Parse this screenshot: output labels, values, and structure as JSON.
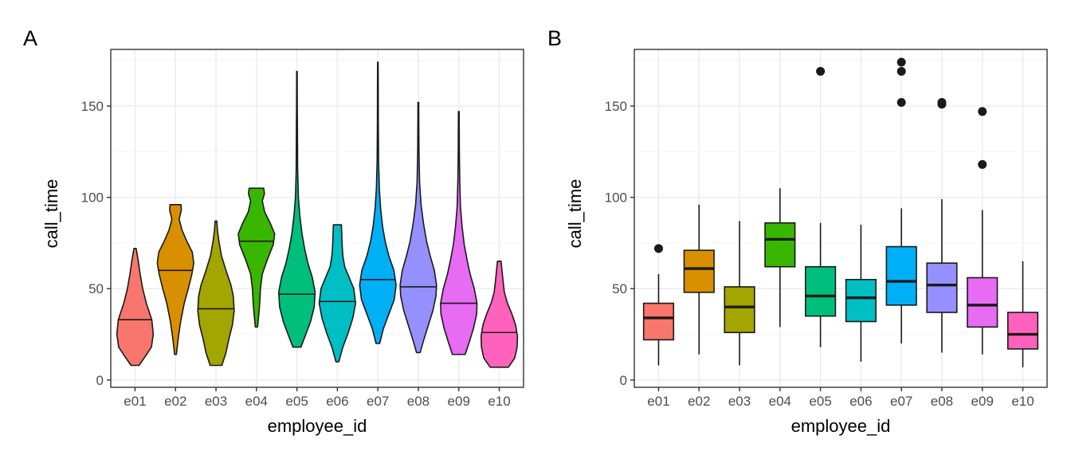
{
  "chart_data": [
    {
      "type": "violin",
      "panel_label": "A",
      "xlabel": "employee_id",
      "ylabel": "call_time",
      "ylim": [
        -4,
        181
      ],
      "yticks": [
        0,
        50,
        100,
        150
      ],
      "grid": true,
      "categories": [
        "e01",
        "e02",
        "e03",
        "e04",
        "e05",
        "e06",
        "e07",
        "e08",
        "e09",
        "e10"
      ],
      "colors": [
        "#F8766D",
        "#D89000",
        "#A3A500",
        "#39B600",
        "#00BF7D",
        "#00BFC4",
        "#00B0F6",
        "#9590FF",
        "#E76BF3",
        "#FF62BC"
      ],
      "violins": [
        {
          "min": 8,
          "max": 72,
          "median": 33,
          "profile": [
            [
              8,
              0.22
            ],
            [
              12,
              0.5
            ],
            [
              18,
              0.9
            ],
            [
              25,
              1.0
            ],
            [
              33,
              0.92
            ],
            [
              42,
              0.62
            ],
            [
              50,
              0.42
            ],
            [
              58,
              0.28
            ],
            [
              65,
              0.18
            ],
            [
              72,
              0.06
            ]
          ]
        },
        {
          "min": 14,
          "max": 96,
          "median": 60,
          "profile": [
            [
              14,
              0.05
            ],
            [
              22,
              0.14
            ],
            [
              32,
              0.28
            ],
            [
              42,
              0.48
            ],
            [
              50,
              0.7
            ],
            [
              58,
              0.9
            ],
            [
              64,
              1.0
            ],
            [
              70,
              0.92
            ],
            [
              76,
              0.62
            ],
            [
              82,
              0.36
            ],
            [
              88,
              0.2
            ],
            [
              93,
              0.32
            ],
            [
              96,
              0.3
            ]
          ]
        },
        {
          "min": 8,
          "max": 87,
          "median": 39,
          "profile": [
            [
              8,
              0.32
            ],
            [
              15,
              0.55
            ],
            [
              23,
              0.72
            ],
            [
              30,
              0.9
            ],
            [
              38,
              1.0
            ],
            [
              46,
              0.95
            ],
            [
              52,
              0.82
            ],
            [
              60,
              0.55
            ],
            [
              68,
              0.3
            ],
            [
              76,
              0.16
            ],
            [
              82,
              0.08
            ],
            [
              87,
              0.05
            ]
          ]
        },
        {
          "min": 29,
          "max": 105,
          "median": 76,
          "profile": [
            [
              29,
              0.06
            ],
            [
              35,
              0.12
            ],
            [
              42,
              0.18
            ],
            [
              50,
              0.22
            ],
            [
              58,
              0.32
            ],
            [
              66,
              0.6
            ],
            [
              74,
              0.92
            ],
            [
              80,
              1.0
            ],
            [
              86,
              0.75
            ],
            [
              92,
              0.45
            ],
            [
              98,
              0.32
            ],
            [
              102,
              0.44
            ],
            [
              105,
              0.4
            ]
          ]
        },
        {
          "min": 18,
          "max": 169,
          "median": 47,
          "profile": [
            [
              18,
              0.22
            ],
            [
              24,
              0.45
            ],
            [
              32,
              0.75
            ],
            [
              40,
              0.95
            ],
            [
              48,
              1.0
            ],
            [
              56,
              0.85
            ],
            [
              64,
              0.6
            ],
            [
              72,
              0.42
            ],
            [
              80,
              0.28
            ],
            [
              90,
              0.16
            ],
            [
              100,
              0.08
            ],
            [
              115,
              0.04
            ],
            [
              135,
              0.03
            ],
            [
              150,
              0.02
            ],
            [
              169,
              0.015
            ]
          ]
        },
        {
          "min": 10,
          "max": 85,
          "median": 43,
          "profile": [
            [
              10,
              0.08
            ],
            [
              18,
              0.3
            ],
            [
              26,
              0.6
            ],
            [
              34,
              0.85
            ],
            [
              42,
              1.0
            ],
            [
              50,
              0.9
            ],
            [
              56,
              0.65
            ],
            [
              62,
              0.4
            ],
            [
              68,
              0.3
            ],
            [
              74,
              0.26
            ],
            [
              80,
              0.24
            ],
            [
              85,
              0.22
            ]
          ]
        },
        {
          "min": 20,
          "max": 174,
          "median": 55,
          "profile": [
            [
              20,
              0.1
            ],
            [
              28,
              0.3
            ],
            [
              36,
              0.6
            ],
            [
              44,
              0.9
            ],
            [
              52,
              1.0
            ],
            [
              60,
              0.88
            ],
            [
              68,
              0.6
            ],
            [
              76,
              0.4
            ],
            [
              84,
              0.26
            ],
            [
              94,
              0.15
            ],
            [
              105,
              0.08
            ],
            [
              120,
              0.04
            ],
            [
              140,
              0.025
            ],
            [
              160,
              0.02
            ],
            [
              174,
              0.015
            ]
          ]
        },
        {
          "min": 15,
          "max": 152,
          "median": 51,
          "profile": [
            [
              15,
              0.1
            ],
            [
              22,
              0.3
            ],
            [
              30,
              0.55
            ],
            [
              38,
              0.8
            ],
            [
              46,
              0.97
            ],
            [
              52,
              1.0
            ],
            [
              60,
              0.88
            ],
            [
              68,
              0.65
            ],
            [
              76,
              0.45
            ],
            [
              86,
              0.28
            ],
            [
              96,
              0.15
            ],
            [
              108,
              0.07
            ],
            [
              125,
              0.035
            ],
            [
              140,
              0.025
            ],
            [
              152,
              0.02
            ]
          ]
        },
        {
          "min": 14,
          "max": 147,
          "median": 42,
          "profile": [
            [
              14,
              0.35
            ],
            [
              20,
              0.55
            ],
            [
              28,
              0.8
            ],
            [
              36,
              0.98
            ],
            [
              42,
              1.0
            ],
            [
              50,
              0.85
            ],
            [
              58,
              0.62
            ],
            [
              66,
              0.45
            ],
            [
              74,
              0.3
            ],
            [
              84,
              0.18
            ],
            [
              95,
              0.09
            ],
            [
              110,
              0.05
            ],
            [
              125,
              0.03
            ],
            [
              147,
              0.02
            ]
          ]
        },
        {
          "min": 7,
          "max": 65,
          "median": 26,
          "profile": [
            [
              7,
              0.5
            ],
            [
              12,
              0.85
            ],
            [
              18,
              0.98
            ],
            [
              24,
              1.0
            ],
            [
              30,
              0.9
            ],
            [
              36,
              0.7
            ],
            [
              42,
              0.45
            ],
            [
              48,
              0.28
            ],
            [
              55,
              0.2
            ],
            [
              60,
              0.15
            ],
            [
              65,
              0.1
            ]
          ]
        }
      ]
    },
    {
      "type": "box",
      "panel_label": "B",
      "xlabel": "employee_id",
      "ylabel": "call_time",
      "ylim": [
        -4,
        181
      ],
      "yticks": [
        0,
        50,
        100,
        150
      ],
      "grid": true,
      "categories": [
        "e01",
        "e02",
        "e03",
        "e04",
        "e05",
        "e06",
        "e07",
        "e08",
        "e09",
        "e10"
      ],
      "colors": [
        "#F8766D",
        "#D89000",
        "#A3A500",
        "#39B600",
        "#00BF7D",
        "#00BFC4",
        "#00B0F6",
        "#9590FF",
        "#E76BF3",
        "#FF62BC"
      ],
      "boxes": [
        {
          "min": 8,
          "q1": 22,
          "median": 34,
          "q3": 42,
          "max": 58,
          "outliers": [
            72
          ]
        },
        {
          "min": 14,
          "q1": 48,
          "median": 61,
          "q3": 71,
          "max": 96,
          "outliers": []
        },
        {
          "min": 8,
          "q1": 26,
          "median": 40,
          "q3": 51,
          "max": 87,
          "outliers": []
        },
        {
          "min": 29,
          "q1": 62,
          "median": 77,
          "q3": 86,
          "max": 105,
          "outliers": []
        },
        {
          "min": 18,
          "q1": 35,
          "median": 46,
          "q3": 62,
          "max": 86,
          "outliers": [
            169
          ]
        },
        {
          "min": 10,
          "q1": 32,
          "median": 45,
          "q3": 55,
          "max": 85,
          "outliers": []
        },
        {
          "min": 20,
          "q1": 41,
          "median": 54,
          "q3": 73,
          "max": 94,
          "outliers": [
            174,
            169,
            152
          ]
        },
        {
          "min": 15,
          "q1": 37,
          "median": 52,
          "q3": 64,
          "max": 99,
          "outliers": [
            152,
            151
          ]
        },
        {
          "min": 14,
          "q1": 29,
          "median": 41,
          "q3": 56,
          "max": 93,
          "outliers": [
            147,
            118
          ]
        },
        {
          "min": 7,
          "q1": 17,
          "median": 25,
          "q3": 37,
          "max": 65,
          "outliers": []
        }
      ]
    }
  ]
}
